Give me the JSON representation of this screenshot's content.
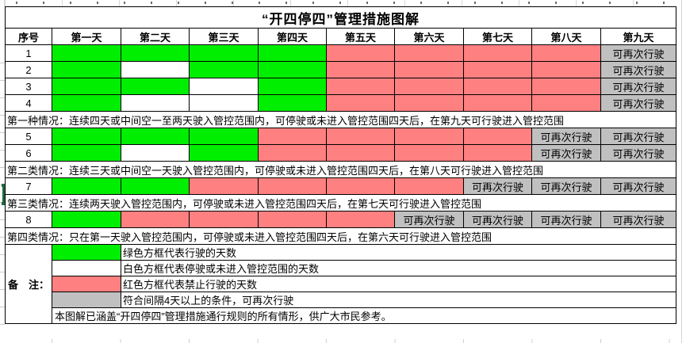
{
  "title": "“开四停四”管理措施图解",
  "colors": {
    "green": "#00EE00",
    "white": "#FFFFFF",
    "red": "#FF8080",
    "gray": "#C0C0C0",
    "border": "#000000",
    "selection": "#1F6B3E"
  },
  "table": {
    "headers": [
      "序号",
      "第一天",
      "第二天",
      "第三天",
      "第四天",
      "第五天",
      "第六天",
      "第七天",
      "第八天",
      "第九天"
    ],
    "reusable_label": "可再次行驶",
    "rows": [
      {
        "type": "data",
        "id": "1",
        "cells": [
          "g",
          "g",
          "g",
          "g",
          "r",
          "r",
          "r",
          "r",
          "y"
        ]
      },
      {
        "type": "data",
        "id": "2",
        "cells": [
          "g",
          "w",
          "g",
          "g",
          "r",
          "r",
          "r",
          "r",
          "y"
        ]
      },
      {
        "type": "data",
        "id": "3",
        "cells": [
          "g",
          "g",
          "w",
          "g",
          "r",
          "r",
          "r",
          "r",
          "y"
        ]
      },
      {
        "type": "data",
        "id": "4",
        "cells": [
          "g",
          "w",
          "w",
          "g",
          "r",
          "r",
          "r",
          "r",
          "y"
        ]
      },
      {
        "type": "case",
        "text": "第一种情况：连续四天或中间空一至两天驶入管控范围内，可停驶或未进入管控范围四天后，在第九天可行驶进入管控范围"
      },
      {
        "type": "data",
        "id": "5",
        "cells": [
          "g",
          "g",
          "g",
          "r",
          "r",
          "r",
          "r",
          "y",
          "y"
        ]
      },
      {
        "type": "data",
        "id": "6",
        "cells": [
          "g",
          "w",
          "g",
          "r",
          "r",
          "r",
          "r",
          "y",
          "y"
        ]
      },
      {
        "type": "case",
        "text": "第二类情况：连续三天或中间空一天驶入管控范围内，可停驶或未进入管控范围四天后，在第八天可行驶进入管控范围"
      },
      {
        "type": "data",
        "id": "7",
        "cells": [
          "g",
          "g",
          "r",
          "r",
          "r",
          "r",
          "y",
          "y",
          "y"
        ]
      },
      {
        "type": "case",
        "text": "第三类情况：连续两天驶入管控范围内，可停驶或未进入管控范围四天后，在第七天可行驶进入管控范围"
      },
      {
        "type": "data",
        "id": "8",
        "cells": [
          "g",
          "r",
          "r",
          "r",
          "r",
          "y",
          "y",
          "y",
          "y"
        ]
      },
      {
        "type": "case",
        "text": "第四类情况：只在第一天驶入管控范围内，可停驶或未进入管控范围四天后，在第六天可行驶进入管控范围"
      }
    ]
  },
  "notes": {
    "label": "备　注：",
    "legend": [
      {
        "swatch": "green",
        "text": "绿色方框代表行驶的天数"
      },
      {
        "swatch": "white",
        "text": "白色方框代表停驶或未进入管控范围的天数"
      },
      {
        "swatch": "red",
        "text": "红色方框代表禁止行驶的天数"
      },
      {
        "swatch": "gray",
        "text": "符合间隔4天以上的条件，可再次行驶"
      }
    ],
    "footer": "本图解已涵盖“开四停四”管理措施通行规则的所有情形，供广大市民参考。"
  }
}
